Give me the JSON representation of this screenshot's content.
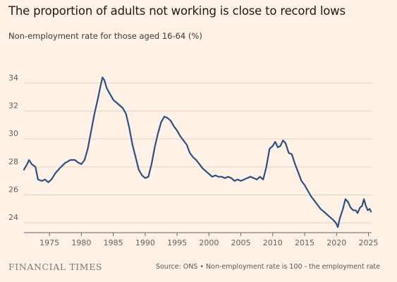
{
  "title": "The proportion of adults not working is close to record lows",
  "subtitle": "Non-employment rate for those aged 16-64 (%)",
  "logo_text": "FINANCIAL TIMES",
  "source": "Source: ONS • Non-employment rate is 100 - the employment rate",
  "colors": {
    "background": "#fff1e5",
    "line": "#2d5084",
    "grid": "#e3d4c4",
    "text": "#66605c"
  },
  "chart_data": {
    "type": "line",
    "title": "The proportion of adults not working is close to record lows",
    "ylabel": "Non-employment rate for those aged 16-64 (%)",
    "xlim": [
      1971,
      2025.5
    ],
    "ylim": [
      23.3,
      35.5
    ],
    "x_ticks": [
      1975,
      1980,
      1985,
      1990,
      1995,
      2000,
      2005,
      2010,
      2015,
      2020,
      2025
    ],
    "y_ticks": [
      24,
      26,
      28,
      30,
      32,
      34
    ],
    "grid": true,
    "series": [
      {
        "color": "#2d5084",
        "points": [
          [
            1971.0,
            27.8
          ],
          [
            1971.5,
            28.2
          ],
          [
            1971.8,
            28.5
          ],
          [
            1972.2,
            28.2
          ],
          [
            1972.8,
            28.0
          ],
          [
            1973.2,
            27.1
          ],
          [
            1973.8,
            27.0
          ],
          [
            1974.3,
            27.1
          ],
          [
            1974.8,
            26.9
          ],
          [
            1975.3,
            27.1
          ],
          [
            1976.0,
            27.6
          ],
          [
            1976.8,
            28.0
          ],
          [
            1977.5,
            28.3
          ],
          [
            1978.3,
            28.5
          ],
          [
            1979.0,
            28.5
          ],
          [
            1979.5,
            28.3
          ],
          [
            1980.0,
            28.2
          ],
          [
            1980.5,
            28.5
          ],
          [
            1981.0,
            29.3
          ],
          [
            1981.5,
            30.5
          ],
          [
            1982.0,
            31.7
          ],
          [
            1982.6,
            32.9
          ],
          [
            1983.0,
            33.8
          ],
          [
            1983.3,
            34.4
          ],
          [
            1983.6,
            34.2
          ],
          [
            1984.0,
            33.6
          ],
          [
            1984.5,
            33.2
          ],
          [
            1985.0,
            32.8
          ],
          [
            1985.5,
            32.6
          ],
          [
            1986.0,
            32.4
          ],
          [
            1986.5,
            32.2
          ],
          [
            1987.0,
            31.8
          ],
          [
            1987.5,
            30.8
          ],
          [
            1988.0,
            29.6
          ],
          [
            1988.5,
            28.7
          ],
          [
            1989.0,
            27.8
          ],
          [
            1989.5,
            27.4
          ],
          [
            1990.0,
            27.2
          ],
          [
            1990.5,
            27.3
          ],
          [
            1991.0,
            28.2
          ],
          [
            1991.5,
            29.4
          ],
          [
            1992.0,
            30.4
          ],
          [
            1992.5,
            31.2
          ],
          [
            1993.0,
            31.6
          ],
          [
            1993.5,
            31.5
          ],
          [
            1994.0,
            31.3
          ],
          [
            1994.5,
            30.9
          ],
          [
            1995.0,
            30.6
          ],
          [
            1995.5,
            30.2
          ],
          [
            1996.0,
            29.9
          ],
          [
            1996.5,
            29.6
          ],
          [
            1997.0,
            29.0
          ],
          [
            1997.5,
            28.7
          ],
          [
            1998.0,
            28.5
          ],
          [
            1998.5,
            28.2
          ],
          [
            1999.0,
            27.9
          ],
          [
            1999.5,
            27.7
          ],
          [
            2000.0,
            27.5
          ],
          [
            2000.5,
            27.3
          ],
          [
            2001.0,
            27.4
          ],
          [
            2001.5,
            27.3
          ],
          [
            2002.0,
            27.3
          ],
          [
            2002.5,
            27.2
          ],
          [
            2003.0,
            27.3
          ],
          [
            2003.5,
            27.2
          ],
          [
            2004.0,
            27.0
          ],
          [
            2004.5,
            27.1
          ],
          [
            2005.0,
            27.0
          ],
          [
            2005.5,
            27.1
          ],
          [
            2006.0,
            27.2
          ],
          [
            2006.5,
            27.3
          ],
          [
            2007.0,
            27.2
          ],
          [
            2007.5,
            27.1
          ],
          [
            2008.0,
            27.3
          ],
          [
            2008.5,
            27.1
          ],
          [
            2009.0,
            28.0
          ],
          [
            2009.5,
            29.3
          ],
          [
            2010.0,
            29.5
          ],
          [
            2010.4,
            29.8
          ],
          [
            2010.8,
            29.4
          ],
          [
            2011.2,
            29.5
          ],
          [
            2011.6,
            29.9
          ],
          [
            2012.0,
            29.7
          ],
          [
            2012.5,
            29.0
          ],
          [
            2013.0,
            28.9
          ],
          [
            2013.5,
            28.2
          ],
          [
            2014.0,
            27.6
          ],
          [
            2014.5,
            27.0
          ],
          [
            2015.0,
            26.7
          ],
          [
            2015.5,
            26.3
          ],
          [
            2016.0,
            25.9
          ],
          [
            2016.5,
            25.6
          ],
          [
            2017.0,
            25.3
          ],
          [
            2017.5,
            25.0
          ],
          [
            2018.0,
            24.8
          ],
          [
            2018.5,
            24.6
          ],
          [
            2019.0,
            24.4
          ],
          [
            2019.5,
            24.2
          ],
          [
            2019.9,
            24.0
          ],
          [
            2020.2,
            23.7
          ],
          [
            2020.5,
            24.3
          ],
          [
            2021.0,
            25.0
          ],
          [
            2021.4,
            25.7
          ],
          [
            2021.8,
            25.5
          ],
          [
            2022.2,
            25.1
          ],
          [
            2022.6,
            24.9
          ],
          [
            2023.0,
            24.9
          ],
          [
            2023.3,
            24.7
          ],
          [
            2023.7,
            25.1
          ],
          [
            2024.0,
            25.2
          ],
          [
            2024.3,
            25.7
          ],
          [
            2024.6,
            25.2
          ],
          [
            2024.9,
            24.9
          ],
          [
            2025.2,
            25.0
          ],
          [
            2025.4,
            24.8
          ]
        ]
      }
    ]
  }
}
